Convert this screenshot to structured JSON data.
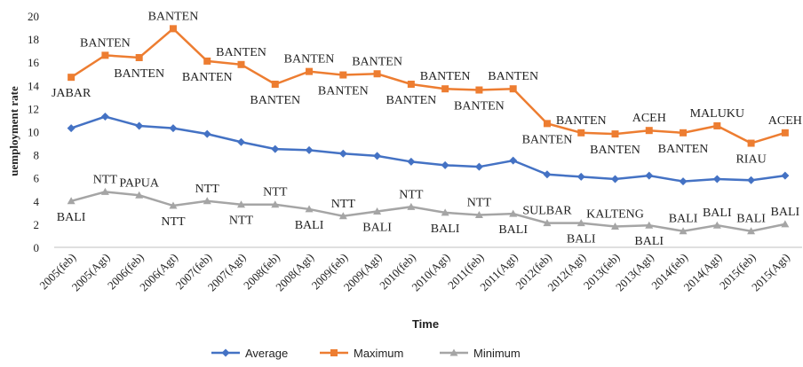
{
  "chart_data": {
    "type": "line",
    "x_label": "Time",
    "y_label": "uemployment rate",
    "categories": [
      "2005(feb)",
      "2005(Agt)",
      "2006(feb)",
      "2006(Agt)",
      "2007(feb)",
      "2007(Agt)",
      "2008(feb)",
      "2008(Agt)",
      "2009(feb)",
      "2009(Agt)",
      "2010(feb)",
      "2010(Agt)",
      "2011(feb)",
      "2011(Agt)",
      "2012(feb)",
      "2012(Agt)",
      "2013(feb)",
      "2013(Agt)",
      "2014(feb)",
      "2014(Agt)",
      "2015(feb)",
      "2015(Agt)"
    ],
    "series": [
      {
        "name": "Average",
        "color": "#4472c4",
        "marker": "diamond",
        "values": [
          10.3,
          11.3,
          10.5,
          10.3,
          9.8,
          9.1,
          8.5,
          8.4,
          8.1,
          7.9,
          7.4,
          7.1,
          6.96,
          7.5,
          6.3,
          6.1,
          5.9,
          6.2,
          5.7,
          5.9,
          5.8,
          6.2
        ]
      },
      {
        "name": "Maximum",
        "color": "#ed7d31",
        "marker": "square",
        "values": [
          14.7,
          16.6,
          16.4,
          18.9,
          16.1,
          15.8,
          14.1,
          15.2,
          14.9,
          15.0,
          14.1,
          13.7,
          13.6,
          13.7,
          10.7,
          9.9,
          9.8,
          10.1,
          9.9,
          10.5,
          9.0,
          9.9
        ],
        "point_labels": [
          "JABAR",
          "BANTEN",
          "BANTEN",
          "BANTEN",
          "BANTEN",
          "BANTEN",
          "BANTEN",
          "BANTEN",
          "BANTEN",
          "BANTEN",
          "BANTEN",
          "BANTEN",
          "BANTEN",
          "BANTEN",
          "BANTEN",
          "BANTEN",
          "BANTEN",
          "ACEH",
          "BANTEN",
          "MALUKU",
          "RIAU",
          "ACEH"
        ]
      },
      {
        "name": "Minimum",
        "color": "#a5a5a5",
        "marker": "triangle",
        "values": [
          4.0,
          4.8,
          4.5,
          3.6,
          4.0,
          3.7,
          3.7,
          3.3,
          2.7,
          3.1,
          3.5,
          3.0,
          2.8,
          2.9,
          2.1,
          2.1,
          1.8,
          1.9,
          1.4,
          1.9,
          1.4,
          2.0
        ],
        "point_labels": [
          "BALI",
          "NTT",
          "PAPUA",
          "NTT",
          "NTT",
          "NTT",
          "NTT",
          "BALI",
          "NTT",
          "BALI",
          "NTT",
          "BALI",
          "NTT",
          "BALI",
          "SULBAR",
          "BALI",
          "KALTENG",
          "BALI",
          "BALI",
          "BALI",
          "BALI",
          "BALI"
        ]
      }
    ],
    "ylim": [
      0,
      20
    ],
    "yticks": [
      0,
      2,
      4,
      6,
      8,
      10,
      12,
      14,
      16,
      18,
      20
    ],
    "grid": false,
    "legend": "bottom"
  }
}
